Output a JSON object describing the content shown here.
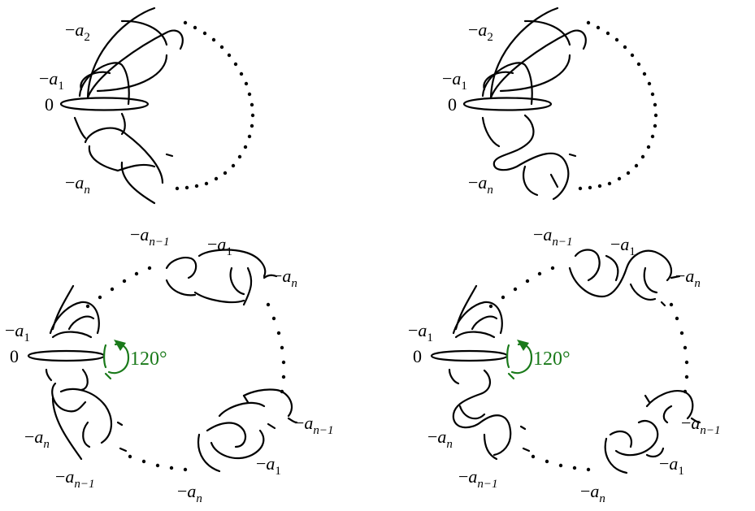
{
  "panels": {
    "top_left": {
      "labels": [
        "−a2",
        "−a1",
        "0",
        "−an"
      ]
    },
    "top_right": {
      "labels": [
        "−a2",
        "−a1",
        "0",
        "−an"
      ]
    },
    "bottom_left": {
      "labels": [
        "−an−1",
        "−a1",
        "−an",
        "−a1",
        "0",
        "120°",
        "−an",
        "−an−1",
        "−an−1",
        "−a1",
        "−an"
      ]
    },
    "bottom_right": {
      "labels": [
        "−an−1",
        "−a1",
        "−an",
        "−a1",
        "0",
        "120°",
        "−an",
        "−an−1",
        "−an−1",
        "−a1",
        "−an"
      ]
    }
  },
  "text": {
    "neg": "−",
    "a": "a",
    "sub_1": "1",
    "sub_2": "2",
    "sub_n": "n",
    "sub_n1": "n−1",
    "zero": "0",
    "rotation": "120°"
  },
  "colors": {
    "stroke": "#000000",
    "rotation_arrow": "#1a7a1a"
  }
}
